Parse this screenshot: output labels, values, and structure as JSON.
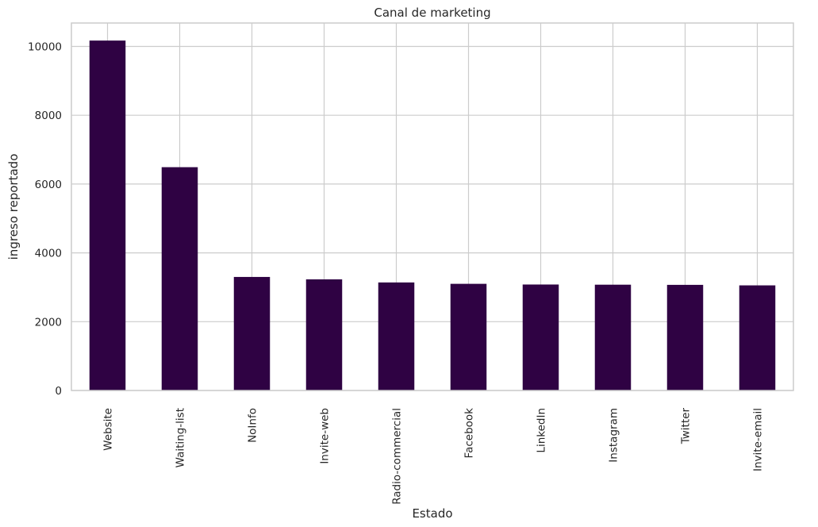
{
  "chart_data": {
    "type": "bar",
    "title": "Canal de marketing",
    "xlabel": "Estado",
    "ylabel": "ingreso reportado",
    "categories": [
      "Website",
      "Waiting-list",
      "NoInfo",
      "Invite-web",
      "Radio-commercial",
      "Facebook",
      "LinkedIn",
      "Instagram",
      "Twitter",
      "Invite-email"
    ],
    "values": [
      10170,
      6490,
      3300,
      3230,
      3140,
      3100,
      3080,
      3075,
      3070,
      3055
    ],
    "ylim": [
      0,
      10680
    ],
    "yticks": [
      0,
      2000,
      4000,
      6000,
      8000,
      10000
    ],
    "ytick_labels": [
      "0",
      "2000",
      "4000",
      "6000",
      "8000",
      "10000"
    ],
    "grid": true,
    "bar_color": "#2f0243",
    "grid_color": "#cccccc",
    "axes_edge_color": "#cccccc"
  }
}
